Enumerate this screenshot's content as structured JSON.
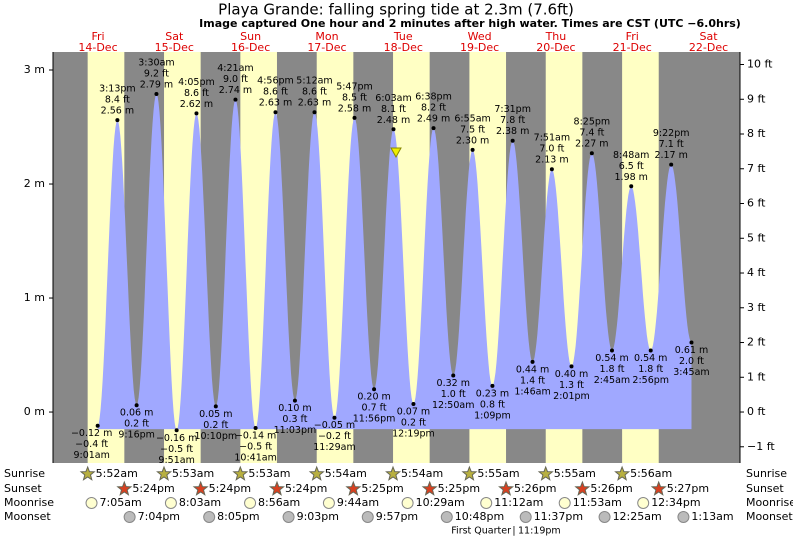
{
  "chart_data": {
    "type": "tide",
    "title": "Playa Grande: falling  spring tide at 2.3m (7.6ft)",
    "subtitle": "Image captured One hour and 2 minutes after high water. Times are CST (UTC −6.0hrs)",
    "days": {
      "names": [
        "Fri",
        "Sat",
        "Sun",
        "Mon",
        "Tue",
        "Wed",
        "Thu",
        "Fri",
        "Sat"
      ],
      "dates": [
        "14-Dec",
        "15-Dec",
        "16-Dec",
        "17-Dec",
        "18-Dec",
        "19-Dec",
        "20-Dec",
        "21-Dec",
        "22-Dec"
      ]
    },
    "ylim": [
      -0.447,
      3.158
    ],
    "yticks": [
      {
        "value": 0,
        "label": "0 m"
      },
      {
        "value": 1,
        "label": "1 m"
      },
      {
        "value": 2,
        "label": "2 m"
      },
      {
        "value": 3,
        "label": "3 m"
      }
    ],
    "y2lim": [
      -1.467,
      10.36
    ],
    "y2ticks": [
      {
        "value": -1,
        "label": "−1 ft"
      },
      {
        "value": 0,
        "label": "0 ft"
      },
      {
        "value": 1,
        "label": "1 ft"
      },
      {
        "value": 2,
        "label": "2 ft"
      },
      {
        "value": 3,
        "label": "3 ft"
      },
      {
        "value": 4,
        "label": "4 ft"
      },
      {
        "value": 5,
        "label": "5 ft"
      },
      {
        "value": 6,
        "label": "6 ft"
      },
      {
        "value": 7,
        "label": "7 ft"
      },
      {
        "value": 8,
        "label": "8 ft"
      },
      {
        "value": 9,
        "label": "9 ft"
      },
      {
        "value": 10,
        "label": "10 ft"
      }
    ],
    "color": "#a0a8ff",
    "extremes": {
      "times": [
        "9:01am",
        "3:13pm",
        "9:16pm",
        "3:30am",
        "9:51am",
        "4:05pm",
        "10:10pm",
        "4:21am",
        "10:41am",
        "4:56pm",
        "11:03pm",
        "5:12am",
        "11:29am",
        "5:47pm",
        "11:56pm",
        "6:03am",
        "12:19pm",
        "6:38pm",
        "12:50am",
        "6:55am",
        "1:09pm",
        "7:31pm",
        "1:46am",
        "7:51am",
        "2:01pm",
        "8:25pm",
        "2:45am",
        "8:48am",
        "2:56pm",
        "9:22pm",
        "3:45am"
      ],
      "values": [
        -0.12,
        2.56,
        0.06,
        2.79,
        -0.16,
        2.62,
        0.05,
        2.74,
        -0.14,
        2.63,
        0.1,
        2.63,
        -0.05,
        2.58,
        0.2,
        2.48,
        0.07,
        2.49,
        0.32,
        2.3,
        0.23,
        2.38,
        0.44,
        2.13,
        0.4,
        2.27,
        0.54,
        1.98,
        0.54,
        2.17,
        0.61
      ],
      "value_labels": [
        "−0.12 m",
        "2.56 m",
        "0.06 m",
        "2.79 m",
        "−0.16 m",
        "2.62 m",
        "0.05 m",
        "2.74 m",
        "−0.14 m",
        "2.63 m",
        "0.10 m",
        "2.63 m",
        "−0.05 m",
        "2.58 m",
        "0.20 m",
        "2.48 m",
        "0.07 m",
        "2.49 m",
        "0.32 m",
        "2.30 m",
        "0.23 m",
        "2.38 m",
        "0.44 m",
        "2.13 m",
        "0.40 m",
        "2.27 m",
        "0.54 m",
        "1.98 m",
        "0.54 m",
        "2.17 m",
        "0.61 m"
      ],
      "ft_labels": [
        "−0.4 ft",
        "8.4 ft",
        "0.2 ft",
        "9.2 ft",
        "−0.5 ft",
        "8.6 ft",
        "0.2 ft",
        "9.0 ft",
        "−0.5 ft",
        "8.6 ft",
        "0.3 ft",
        "8.6 ft",
        "−0.2 ft",
        "8.5 ft",
        "0.7 ft",
        "8.1 ft",
        "0.2 ft",
        "8.2 ft",
        "1.0 ft",
        "7.5 ft",
        "0.8 ft",
        "7.8 ft",
        "1.4 ft",
        "7.0 ft",
        "1.3 ft",
        "7.4 ft",
        "1.8 ft",
        "6.5 ft",
        "1.8 ft",
        "7.1 ft",
        "2.0 ft"
      ]
    },
    "rows": [
      {
        "name": "Sunrise",
        "times": [
          "5:52am",
          "5:53am",
          "5:53am",
          "5:54am",
          "5:54am",
          "5:55am",
          "5:55am",
          "5:56am"
        ]
      },
      {
        "name": "Sunset",
        "times": [
          "5:24pm",
          "5:24pm",
          "5:24pm",
          "5:25pm",
          "5:25pm",
          "5:26pm",
          "5:26pm",
          "5:27pm"
        ]
      },
      {
        "name": "Moonrise",
        "times": [
          "7:05am",
          "8:03am",
          "8:56am",
          "9:44am",
          "10:29am",
          "11:12am",
          "11:53am",
          "12:34pm"
        ]
      },
      {
        "name": "Moonset",
        "times": [
          "7:04pm",
          "8:05pm",
          "9:03pm",
          "9:57pm",
          "10:48pm",
          "11:37pm",
          "12:25am",
          "1:13am"
        ]
      }
    ],
    "moon_phase": {
      "name": "First Quarter",
      "time": "11:19pm"
    }
  }
}
